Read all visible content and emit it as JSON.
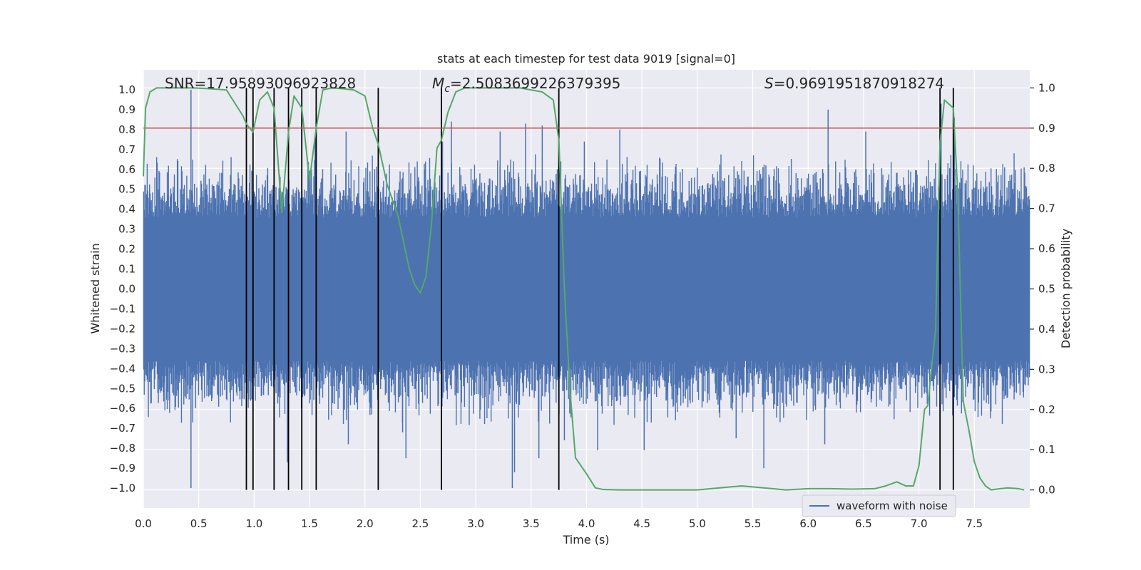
{
  "chart_data": {
    "type": "line",
    "title": "stats at each timestep for test data 9019 [signal=0]",
    "xlabel": "Time (s)",
    "ylabel": "Whitened strain",
    "y2label": "Detection probability",
    "xlim": [
      0.0,
      8.0
    ],
    "ylim": [
      -1.1,
      1.1
    ],
    "y2lim": [
      -0.045,
      1.045
    ],
    "xticks": [
      0.0,
      0.5,
      1.0,
      1.5,
      2.0,
      2.5,
      3.0,
      3.5,
      4.0,
      4.5,
      5.0,
      5.5,
      6.0,
      6.5,
      7.0,
      7.5
    ],
    "xtick_labels": [
      "0.0",
      "0.5",
      "1.0",
      "1.5",
      "2.0",
      "2.5",
      "3.0",
      "3.5",
      "4.0",
      "4.5",
      "5.0",
      "5.5",
      "6.0",
      "6.5",
      "7.0",
      "7.5"
    ],
    "yticks": [
      1.0,
      0.9,
      0.8,
      0.7,
      0.6,
      0.5,
      0.4,
      0.3,
      0.2,
      0.1,
      0.0,
      -0.1,
      -0.2,
      -0.3,
      -0.4,
      -0.5,
      -0.6,
      -0.7,
      -0.8,
      -0.9,
      -1.0
    ],
    "ytick_labels": [
      "1.0",
      "0.9",
      "0.8",
      "0.7",
      "0.6",
      "0.5",
      "0.4",
      "0.3",
      "0.2",
      "0.1",
      "0.0",
      "−0.1",
      "−0.2",
      "−0.3",
      "−0.4",
      "−0.5",
      "−0.6",
      "−0.7",
      "−0.8",
      "−0.9",
      "−1.0"
    ],
    "y2ticks": [
      1.0,
      0.9,
      0.8,
      0.7,
      0.6,
      0.5,
      0.4,
      0.3,
      0.2,
      0.1,
      0.0
    ],
    "y2tick_labels": [
      "1.0",
      "0.9",
      "0.8",
      "0.7",
      "0.6",
      "0.5",
      "0.4",
      "0.3",
      "0.2",
      "0.1",
      "0.0"
    ],
    "grid": true,
    "legend": {
      "position": "bottom-right",
      "entries": [
        "waveform with noise"
      ]
    },
    "annotations": {
      "snr": "SNR=17.95893096923828",
      "mc_symbol": "M",
      "mc_sub": "c",
      "mc_value": "=2.5083699226379395",
      "s_symbol": "S",
      "s_value": "=0.9691951870918274"
    },
    "threshold": {
      "axis": "y2",
      "value": 0.9
    },
    "vertical_lines": [
      0.93,
      0.99,
      1.18,
      1.31,
      1.43,
      1.56,
      2.12,
      2.69,
      3.75,
      7.19,
      7.31
    ],
    "waveform": {
      "name": "waveform with noise",
      "duration": 8.0,
      "samples": 1500,
      "envelope_core": 0.36,
      "envelope_typical": 0.6,
      "spikes_up": [
        [
          0.43,
          1.0
        ],
        [
          2.78,
          0.84
        ],
        [
          2.7,
          0.74
        ],
        [
          3.22,
          0.79
        ],
        [
          3.45,
          0.83
        ],
        [
          3.6,
          0.82
        ],
        [
          3.98,
          0.74
        ],
        [
          4.3,
          0.8
        ],
        [
          6.18,
          0.9
        ],
        [
          6.52,
          0.79
        ],
        [
          7.32,
          0.86
        ],
        [
          7.2,
          0.93
        ],
        [
          1.83,
          0.79
        ],
        [
          1.55,
          0.76
        ]
      ],
      "spikes_down": [
        [
          0.43,
          -1.0
        ],
        [
          3.33,
          -1.0
        ],
        [
          3.35,
          -0.92
        ],
        [
          5.6,
          -0.9
        ],
        [
          1.3,
          -0.87
        ],
        [
          2.37,
          -0.85
        ],
        [
          3.57,
          -0.85
        ],
        [
          4.1,
          -0.81
        ],
        [
          4.52,
          -0.81
        ],
        [
          1.85,
          -0.78
        ],
        [
          6.15,
          -0.78
        ],
        [
          2.34,
          -0.72
        ],
        [
          3.8,
          -0.76
        ],
        [
          5.35,
          -0.75
        ]
      ]
    },
    "series": [
      {
        "name": "detection probability",
        "axis": "y2",
        "color": "#55a868",
        "x": [
          0.0,
          0.02,
          0.06,
          0.12,
          0.2,
          0.3,
          0.45,
          0.6,
          0.75,
          0.9,
          0.93,
          0.99,
          1.05,
          1.12,
          1.18,
          1.25,
          1.31,
          1.36,
          1.43,
          1.5,
          1.56,
          1.62,
          1.7,
          1.8,
          1.9,
          2.0,
          2.07,
          2.12,
          2.2,
          2.3,
          2.4,
          2.45,
          2.5,
          2.55,
          2.6,
          2.65,
          2.69,
          2.75,
          2.82,
          2.9,
          3.0,
          3.2,
          3.4,
          3.6,
          3.7,
          3.75,
          3.8,
          3.85,
          3.9,
          4.0,
          4.08,
          4.15,
          4.3,
          4.5,
          4.8,
          5.0,
          5.2,
          5.4,
          5.6,
          5.8,
          6.0,
          6.2,
          6.4,
          6.6,
          6.7,
          6.8,
          6.88,
          6.95,
          7.0,
          7.05,
          7.08,
          7.15,
          7.19,
          7.23,
          7.27,
          7.31,
          7.35,
          7.4,
          7.45,
          7.5,
          7.55,
          7.6,
          7.65,
          7.7,
          7.8,
          7.9,
          7.95
        ],
        "y": [
          0.78,
          0.95,
          0.99,
          1.0,
          1.0,
          1.0,
          1.0,
          0.998,
          0.995,
          0.93,
          0.91,
          0.89,
          0.97,
          0.99,
          0.95,
          0.69,
          0.89,
          0.98,
          0.95,
          0.77,
          0.9,
          0.995,
          1.0,
          0.998,
          0.995,
          0.98,
          0.9,
          0.86,
          0.76,
          0.68,
          0.55,
          0.51,
          0.49,
          0.53,
          0.66,
          0.85,
          0.87,
          0.94,
          0.99,
          1.0,
          1.0,
          1.0,
          1.0,
          0.99,
          0.97,
          0.87,
          0.5,
          0.25,
          0.08,
          0.04,
          0.005,
          0.001,
          0.0,
          0.0,
          0.0,
          0.0,
          0.005,
          0.01,
          0.005,
          0.0,
          0.003,
          0.003,
          0.002,
          0.003,
          0.01,
          0.02,
          0.01,
          0.01,
          0.06,
          0.2,
          0.21,
          0.4,
          0.86,
          0.97,
          0.96,
          0.95,
          0.74,
          0.22,
          0.15,
          0.07,
          0.03,
          0.01,
          0.0,
          0.002,
          0.005,
          0.003,
          0.0
        ]
      },
      {
        "name": "threshold",
        "axis": "y2",
        "color": "#c44e52",
        "x": [
          0.0,
          8.0
        ],
        "y": [
          0.9,
          0.9
        ]
      }
    ]
  },
  "colors": {
    "axes_bg": "#eaeaf2",
    "grid": "#ffffff",
    "waveform": "#4c72b0",
    "probability": "#55a868",
    "threshold": "#c44e52",
    "vlines": "#000000",
    "text": "#262626"
  }
}
